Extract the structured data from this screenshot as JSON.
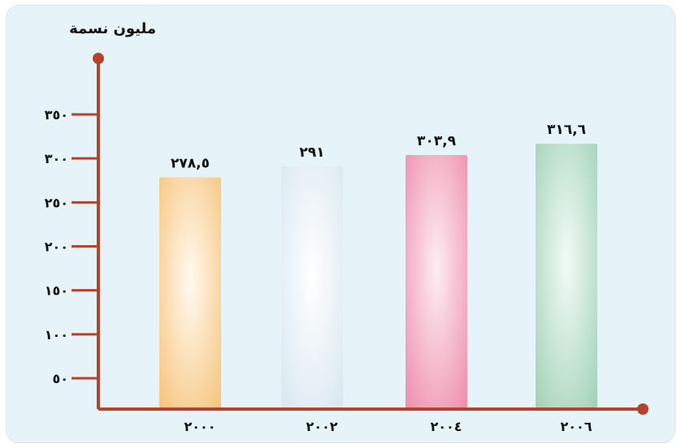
{
  "chart_data": {
    "type": "bar",
    "title": "",
    "ylabel": "مليون نسمة",
    "xlabel": "",
    "categories": [
      "٢٠٠٠",
      "٢٠٠٢",
      "٢٠٠٤",
      "٢٠٠٦"
    ],
    "values": [
      278.5,
      291,
      303.9,
      316.6
    ],
    "value_labels": [
      "٢٧٨,٥",
      "٢٩١",
      "٣٠٣,٩",
      "٣١٦,٦"
    ],
    "y_ticks": [
      50,
      100,
      150,
      200,
      250,
      300,
      350
    ],
    "y_tick_labels": [
      "٥٠",
      "١٠٠",
      "١٥٠",
      "٢٠٠",
      "٢٥٠",
      "٣٠٠",
      "٣٥٠"
    ],
    "ylim": [
      0,
      350
    ],
    "y_scale_note": "axis appears truncated: values drawn from a broken baseline",
    "grid": false,
    "legend": "none",
    "colors": {
      "background": "#e6f3f8",
      "axis": "#b5432b",
      "text": "#111111",
      "bars": [
        "#f7c37a",
        "#d8e7f0",
        "#ee8cab",
        "#9fd1b5"
      ],
      "bar_centers": [
        "#fffaf0",
        "#ffffff",
        "#fdeef3",
        "#f3fbf6"
      ]
    }
  }
}
